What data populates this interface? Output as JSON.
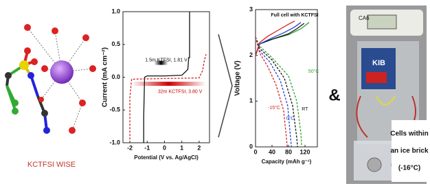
{
  "molecule_label": "KCTFSI WISE",
  "ampersand": "&",
  "photo": {
    "device_label": "CA6",
    "kib_label": "KIB",
    "caption": [
      "Cells within",
      "an ice brick",
      "(-16°C)"
    ]
  },
  "chart_data": [
    {
      "type": "line",
      "xlabel": "Potential (V vs. Ag/AgCl)",
      "ylabel": "Current (mA cm⁻²)",
      "xlim": [
        -2.4,
        2.6
      ],
      "xticks": [
        -2,
        -1,
        0,
        1,
        2
      ],
      "ylim": [
        -1.0,
        1.0
      ],
      "yticks": [
        {
          "value": -1.0,
          "label": "-1.0"
        },
        {
          "value": -0.5,
          "label": "-0.5"
        },
        {
          "value": 0.0,
          "label": "0.0"
        },
        {
          "value": 0.5,
          "label": "0.5"
        },
        {
          "value": 1.0,
          "label": "1.0"
        }
      ],
      "annotations": [
        "1.5m KTFSI, 1.81 V",
        "32m KCTFSI, 3.80 V"
      ],
      "series": [
        {
          "color": "#111111",
          "dash": false,
          "x": [
            -1.2,
            -1.2,
            -1.15,
            -1.0,
            0,
            1.0,
            1.2,
            1.35,
            1.4,
            1.45,
            1.45
          ],
          "values": [
            -1.0,
            -0.6,
            0.0,
            0.02,
            0.02,
            0.03,
            0.08,
            0.12,
            0.3,
            0.3,
            1.0
          ]
        },
        {
          "color": "#d42020",
          "dash": true,
          "x": [
            -2.0,
            -2.0,
            -1.9,
            0,
            2.0,
            2.2,
            2.3,
            2.4
          ],
          "values": [
            -0.95,
            -0.3,
            -0.03,
            -0.02,
            -0.01,
            0.1,
            0.25,
            0.35
          ]
        }
      ]
    },
    {
      "type": "line",
      "title": "Full cell with KCTFSI",
      "xlabel": "Capacity (mAh g⁻¹)",
      "ylabel": "Voltage (V)",
      "xlim": [
        0,
        150
      ],
      "xticks": [
        0,
        40,
        80,
        120
      ],
      "ylim": [
        0,
        3
      ],
      "yticks": [
        0,
        1,
        2,
        3
      ],
      "annotations": [
        "50°C",
        "RT",
        "0°C",
        "-15°C"
      ],
      "series": [
        {
          "color": "#2e9e2e",
          "dash": false,
          "x": [
            0,
            10,
            40,
            80,
            110,
            130
          ],
          "values": [
            2.0,
            2.25,
            2.35,
            2.45,
            2.58,
            2.72
          ]
        },
        {
          "color": "#111111",
          "dash": false,
          "x": [
            0,
            10,
            40,
            80,
            100,
            118
          ],
          "values": [
            2.0,
            2.25,
            2.35,
            2.47,
            2.58,
            2.7
          ]
        },
        {
          "color": "#2040d0",
          "dash": false,
          "x": [
            0,
            10,
            40,
            70,
            95,
            110
          ],
          "values": [
            2.0,
            2.25,
            2.38,
            2.5,
            2.62,
            2.72
          ]
        },
        {
          "color": "#d42020",
          "dash": false,
          "x": [
            0,
            10,
            30,
            55,
            80,
            95
          ],
          "values": [
            2.0,
            2.28,
            2.42,
            2.55,
            2.68,
            2.75
          ]
        },
        {
          "color": "#2e9e2e",
          "dash": true,
          "x": [
            0,
            10,
            40,
            80,
            100,
            110,
            112
          ],
          "values": [
            2.4,
            2.2,
            1.95,
            1.55,
            1.0,
            0.3,
            0
          ]
        },
        {
          "color": "#111111",
          "dash": true,
          "x": [
            0,
            10,
            40,
            70,
            90,
            100,
            102
          ],
          "values": [
            2.4,
            2.15,
            1.9,
            1.5,
            0.9,
            0.2,
            0
          ]
        },
        {
          "color": "#2040d0",
          "dash": true,
          "x": [
            0,
            10,
            35,
            60,
            78,
            85,
            87
          ],
          "values": [
            2.4,
            2.1,
            1.85,
            1.45,
            0.9,
            0.2,
            0
          ]
        },
        {
          "color": "#d42020",
          "dash": true,
          "x": [
            0,
            10,
            30,
            50,
            68,
            75,
            77
          ],
          "values": [
            2.4,
            2.05,
            1.75,
            1.35,
            0.8,
            0.2,
            0
          ]
        }
      ]
    }
  ]
}
